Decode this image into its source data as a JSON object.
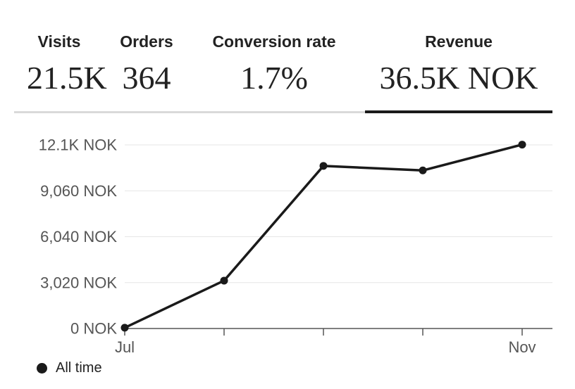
{
  "metrics": [
    {
      "label": "Visits",
      "value": "21.5K",
      "active": false
    },
    {
      "label": "Orders",
      "value": "364",
      "active": false
    },
    {
      "label": "Conversion rate",
      "value": "1.7%",
      "active": false
    },
    {
      "label": "Revenue",
      "value": "36.5K NOK",
      "active": true
    }
  ],
  "colors": {
    "line": "#1a1a1a",
    "active_underline": "#1a1a1a",
    "inactive_underline": "#d9d9d9",
    "grid": "#e6e6e6",
    "axis_text": "#555555"
  },
  "chart_data": {
    "type": "line",
    "x_labels": [
      "Jul",
      "",
      "",
      "",
      "Nov"
    ],
    "y_ticks": [
      0,
      3020,
      6040,
      9060,
      12080
    ],
    "y_tick_labels": [
      "0 NOK",
      "3,020 NOK",
      "6,040 NOK",
      "9,060 NOK",
      "12.1K NOK"
    ],
    "ylim": [
      0,
      12080
    ],
    "grid": true,
    "series": [
      {
        "name": "All time",
        "values": [
          50,
          3150,
          10700,
          10400,
          12100
        ]
      }
    ],
    "legend_position": "bottom-left"
  }
}
